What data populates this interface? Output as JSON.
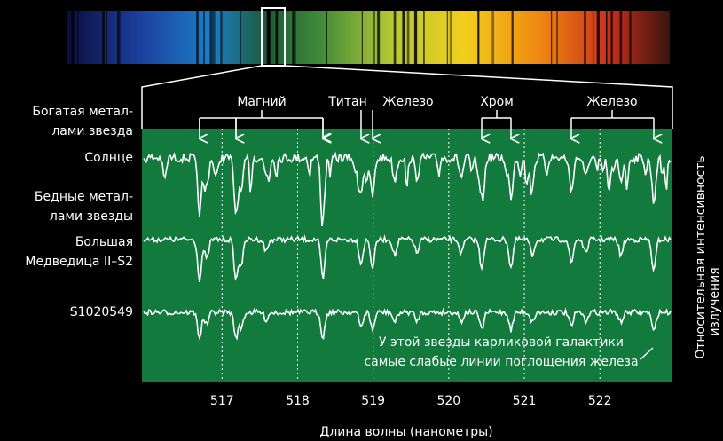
{
  "left_labels": [
    [
      "Богатая метал-",
      "лами звезда"
    ],
    [
      "Солнце"
    ],
    [
      "Бедные метал-",
      "лами звезды"
    ],
    [
      "Большая",
      "Медведица II–S2"
    ],
    [
      "S1020549"
    ]
  ],
  "elements": [
    {
      "label": "Магний"
    },
    {
      "label": "Титан"
    },
    {
      "label": "Железо"
    },
    {
      "label": "Хром"
    },
    {
      "label": "Железо"
    }
  ],
  "x_axis": {
    "title": "Длина волны (нанометры)",
    "xlim": [
      515.94,
      522.96
    ],
    "xticks": [
      517,
      518,
      519,
      520,
      521,
      522
    ]
  },
  "y_axis_title": [
    "Относительная интенсивность",
    "излучения"
  ],
  "annotation": [
    "У этой звезды карликовой галактики",
    "самые слабые линии поглощения железа"
  ]
}
